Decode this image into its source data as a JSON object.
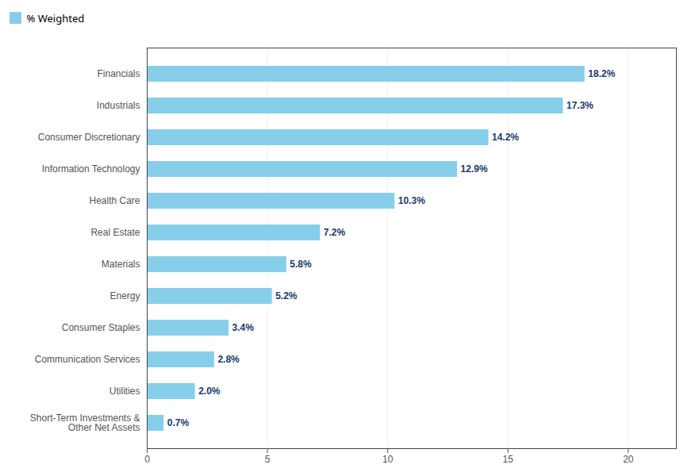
{
  "chart_data": {
    "type": "bar",
    "orientation": "horizontal",
    "categories": [
      "Short-Term Investments &\nOther Net Assets",
      "Utilities",
      "Communication Services",
      "Consumer Staples",
      "Energy",
      "Materials",
      "Real Estate",
      "Health Care",
      "Information Technology",
      "Consumer Discretionary",
      "Industrials",
      "Financials"
    ],
    "series": [
      {
        "name": "% Weighted",
        "color": "#87CEEB",
        "values": [
          0.7,
          2.0,
          2.8,
          3.4,
          5.2,
          5.8,
          7.2,
          10.3,
          12.9,
          14.2,
          17.3,
          18.2
        ],
        "value_labels": [
          "0.7%",
          "2.0%",
          "2.8%",
          "3.4%",
          "5.2%",
          "5.8%",
          "7.2%",
          "10.3%",
          "12.9%",
          "14.2%",
          "17.3%",
          "18.2%"
        ]
      }
    ],
    "xlim": [
      0,
      22
    ],
    "xticks": [
      0,
      5,
      10,
      15,
      20
    ],
    "grid": true,
    "legend": "upper left",
    "data_labels": true
  }
}
